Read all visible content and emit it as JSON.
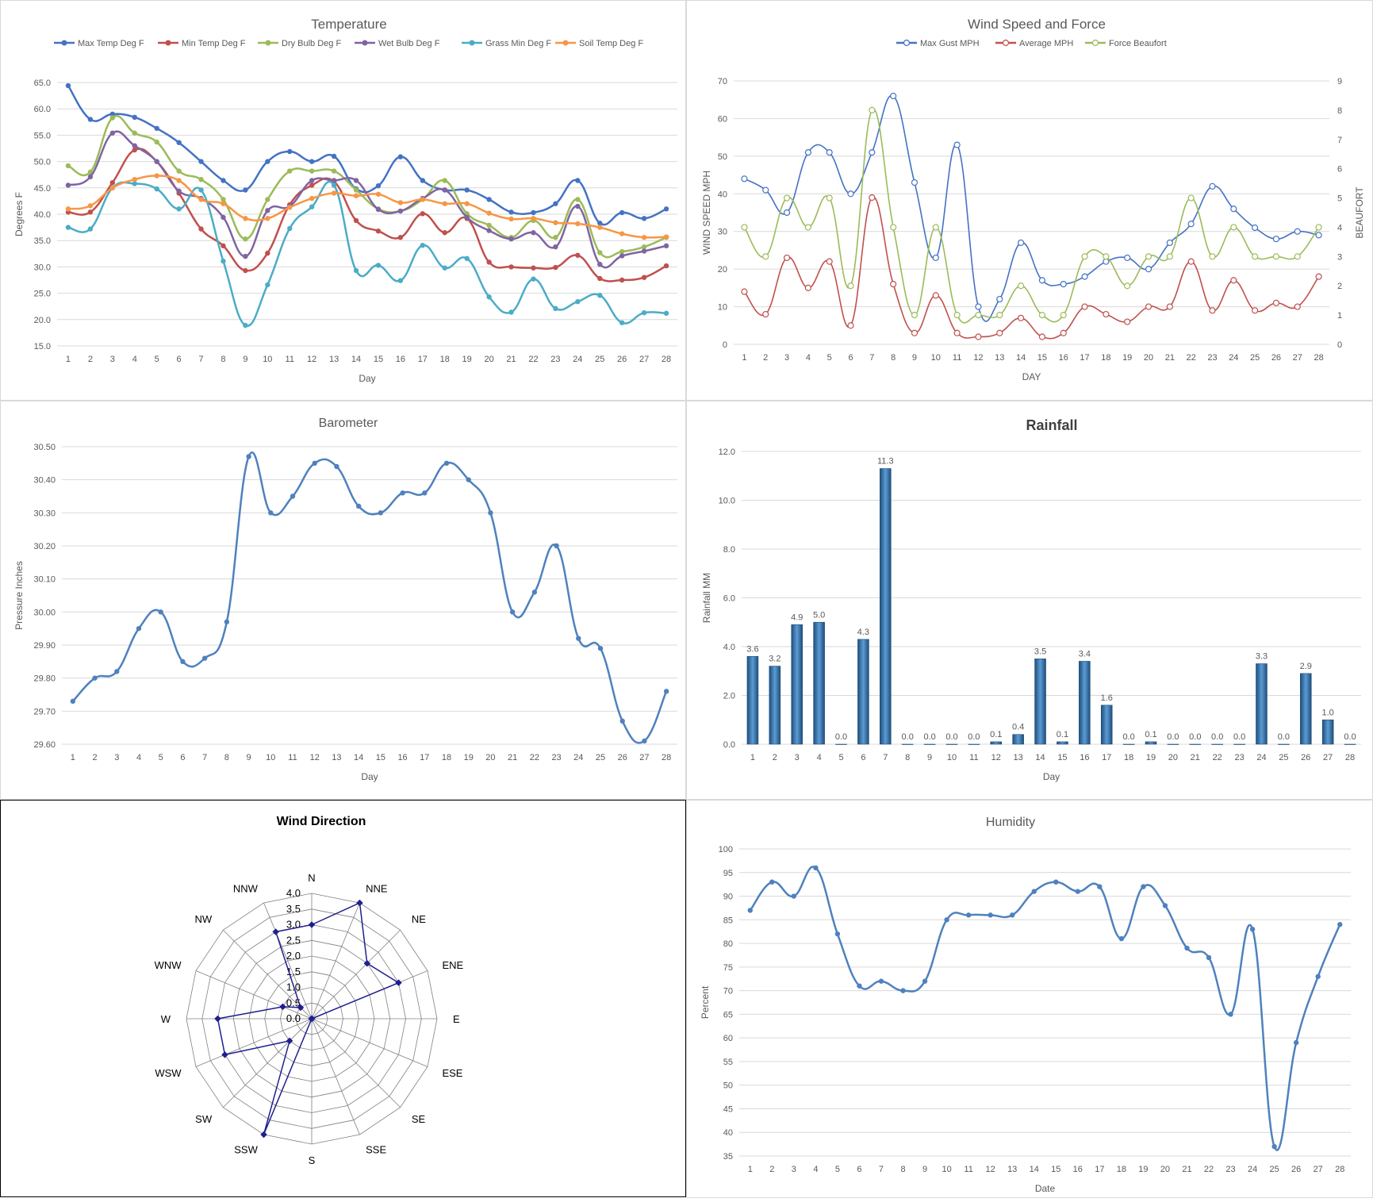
{
  "colors": {
    "max_temp": "#4472C4",
    "min_temp": "#C0504D",
    "dry_bulb": "#9BBB59",
    "wet_bulb": "#8064A2",
    "grass_min": "#4BACC6",
    "soil_temp": "#F79646",
    "barometer": "#4F81BD",
    "rain_bar": "#2E75B6",
    "radar_line": "#1F1F8F",
    "grid": "#D9D9D9",
    "radar_grid": "#808080"
  },
  "chart_data": [
    {
      "id": "temperature",
      "type": "line",
      "title": "Temperature",
      "xlabel": "Day",
      "ylabel": "Degrees F",
      "ylim": [
        15,
        65
      ],
      "ytick_step": 5,
      "ytick_decimals": 1,
      "legend": "top",
      "grid": true,
      "x": [
        1,
        2,
        3,
        4,
        5,
        6,
        7,
        8,
        9,
        10,
        11,
        12,
        13,
        14,
        15,
        16,
        17,
        18,
        19,
        20,
        21,
        22,
        23,
        24,
        25,
        26,
        27,
        28
      ],
      "series": [
        {
          "name": "Max Temp Deg F",
          "color_key": "max_temp",
          "values": [
            64.4,
            58.0,
            59.0,
            58.4,
            56.3,
            53.6,
            50.0,
            46.4,
            44.6,
            50.0,
            51.9,
            50.0,
            51.0,
            44.8,
            45.4,
            50.9,
            46.4,
            44.6,
            44.6,
            42.8,
            40.4,
            40.3,
            42.0,
            46.4,
            38.3,
            40.3,
            39.2,
            41.0
          ]
        },
        {
          "name": "Min Temp Deg F",
          "color_key": "min_temp",
          "values": [
            40.4,
            40.4,
            46.0,
            52.2,
            50.0,
            44.0,
            37.2,
            34.0,
            29.3,
            32.6,
            41.8,
            45.5,
            46.2,
            38.8,
            36.8,
            35.6,
            40.1,
            36.5,
            39.2,
            30.9,
            30.0,
            29.8,
            29.9,
            32.2,
            27.8,
            27.5,
            28.0,
            30.2
          ]
        },
        {
          "name": "Dry Bulb Deg F",
          "color_key": "dry_bulb",
          "values": [
            49.2,
            48.0,
            58.3,
            55.4,
            53.7,
            48.2,
            46.6,
            42.8,
            35.3,
            42.8,
            48.2,
            48.2,
            48.2,
            44.6,
            41.0,
            40.6,
            42.8,
            46.4,
            40.1,
            37.9,
            35.6,
            38.8,
            35.6,
            42.8,
            32.7,
            32.9,
            33.8,
            35.6
          ]
        },
        {
          "name": "Wet Bulb Deg F",
          "color_key": "wet_bulb",
          "values": [
            45.5,
            47.1,
            55.4,
            53.0,
            50.0,
            44.4,
            43.0,
            39.4,
            32.0,
            40.7,
            41.5,
            46.4,
            46.4,
            46.4,
            40.9,
            40.6,
            43.0,
            44.6,
            39.4,
            36.9,
            35.3,
            36.5,
            33.8,
            41.5,
            30.5,
            32.1,
            33.0,
            34.0
          ]
        },
        {
          "name": "Grass Min Deg F",
          "color_key": "grass_min",
          "values": [
            37.5,
            37.2,
            45.0,
            45.8,
            44.8,
            41.0,
            44.6,
            31.1,
            18.9,
            26.6,
            37.3,
            41.4,
            45.5,
            29.3,
            30.3,
            27.4,
            34.1,
            29.8,
            31.6,
            24.3,
            21.4,
            27.7,
            22.1,
            23.4,
            24.6,
            19.4,
            21.3,
            21.2
          ]
        },
        {
          "name": "Soil Temp Deg F",
          "color_key": "soil_temp",
          "values": [
            41.0,
            41.6,
            45.0,
            46.6,
            47.3,
            46.4,
            42.8,
            42.0,
            39.2,
            39.2,
            41.3,
            43.0,
            44.0,
            43.5,
            43.8,
            42.2,
            42.8,
            42.0,
            42.0,
            40.2,
            39.1,
            39.2,
            38.4,
            38.2,
            37.5,
            36.3,
            35.6,
            35.7
          ]
        }
      ]
    },
    {
      "id": "wind",
      "type": "line",
      "title": "Wind Speed and Force",
      "xlabel": "DAY",
      "ylabel": "WIND SPEED MPH",
      "y2label": "BEAUFORT",
      "ylim": [
        0,
        70
      ],
      "ytick_step": 10,
      "y2lim": [
        0,
        9
      ],
      "y2tick_step": 1,
      "legend": "top",
      "grid": true,
      "x": [
        1,
        2,
        3,
        4,
        5,
        6,
        7,
        8,
        9,
        10,
        11,
        12,
        13,
        14,
        15,
        16,
        17,
        18,
        19,
        20,
        21,
        22,
        23,
        24,
        25,
        26,
        27,
        28
      ],
      "series": [
        {
          "name": "Max Gust MPH",
          "color_key": "max_temp",
          "axis": "left",
          "values": [
            44,
            41,
            35,
            51,
            51,
            40,
            51,
            66,
            43,
            23,
            53,
            10,
            12,
            27,
            17,
            16,
            18,
            22,
            23,
            20,
            27,
            32,
            42,
            36,
            31,
            28,
            30,
            29
          ]
        },
        {
          "name": "Average MPH",
          "color_key": "min_temp",
          "axis": "left",
          "values": [
            14,
            8,
            23,
            15,
            22,
            5,
            39,
            16,
            3,
            13,
            3,
            2,
            3,
            7,
            2,
            3,
            10,
            8,
            6,
            10,
            10,
            22,
            9,
            17,
            9,
            11,
            10,
            18
          ]
        },
        {
          "name": "Force Beaufort",
          "color_key": "dry_bulb",
          "axis": "right",
          "values": [
            4,
            3,
            5,
            4,
            5,
            2,
            8,
            4,
            1,
            4,
            1,
            1,
            1,
            2,
            1,
            1,
            3,
            3,
            2,
            3,
            3,
            5,
            3,
            4,
            3,
            3,
            3,
            4
          ]
        }
      ]
    },
    {
      "id": "barometer",
      "type": "line",
      "title": "Barometer",
      "xlabel": "Day",
      "ylabel": "Pressure Inches",
      "ylim": [
        29.6,
        30.5
      ],
      "ytick_step": 0.1,
      "ytick_decimals": 2,
      "grid": true,
      "x": [
        1,
        2,
        3,
        4,
        5,
        6,
        7,
        8,
        9,
        10,
        11,
        12,
        13,
        14,
        15,
        16,
        17,
        18,
        19,
        20,
        21,
        22,
        23,
        24,
        25,
        26,
        27,
        28
      ],
      "series": [
        {
          "name": "",
          "color_key": "barometer",
          "values": [
            29.73,
            29.8,
            29.82,
            29.95,
            30.0,
            29.85,
            29.86,
            29.97,
            30.47,
            30.3,
            30.35,
            30.45,
            30.44,
            30.32,
            30.3,
            30.36,
            30.36,
            30.45,
            30.4,
            30.3,
            30.0,
            30.06,
            30.2,
            29.92,
            29.89,
            29.67,
            29.61,
            29.76
          ]
        }
      ]
    },
    {
      "id": "rainfall",
      "type": "bar",
      "title": "Rainfall",
      "xlabel": "Day",
      "ylabel": "Rainfall MM",
      "ylim": [
        0,
        12
      ],
      "ytick_step": 2,
      "ytick_decimals": 1,
      "grid": true,
      "categories": [
        "1",
        "2",
        "3",
        "4",
        "5",
        "6",
        "7",
        "8",
        "9",
        "10",
        "11",
        "12",
        "13",
        "14",
        "15",
        "16",
        "17",
        "18",
        "19",
        "20",
        "21",
        "22",
        "23",
        "24",
        "25",
        "26",
        "27",
        "28"
      ],
      "values": [
        3.6,
        3.2,
        4.9,
        5.0,
        0.0,
        4.3,
        11.3,
        0.0,
        0.0,
        0.0,
        0.0,
        0.1,
        0.4,
        3.5,
        0.1,
        3.4,
        1.6,
        0.0,
        0.1,
        0.0,
        0.0,
        0.0,
        0.0,
        3.3,
        0.0,
        2.9,
        1.0,
        0.0
      ]
    },
    {
      "id": "wind_direction",
      "type": "radar",
      "title": "Wind Direction",
      "rlim": [
        0,
        4
      ],
      "rtick_step": 0.5,
      "rtick_labels": [
        "0.0",
        "0.5",
        "1.0",
        "1.5",
        "2.0",
        "2.5",
        "3.0",
        "3.5",
        "4.0"
      ],
      "categories": [
        "N",
        "NNE",
        "NE",
        "ENE",
        "E",
        "ESE",
        "SE",
        "SSE",
        "S",
        "SSW",
        "SW",
        "WSW",
        "W",
        "WNW",
        "NW",
        "NNW"
      ],
      "values": [
        3.0,
        4.0,
        2.5,
        3.0,
        0,
        0,
        0,
        0,
        0,
        4.0,
        1.0,
        3.0,
        3.0,
        1.0,
        0.5,
        3.0
      ]
    },
    {
      "id": "humidity",
      "type": "line",
      "title": "Humidity",
      "xlabel": "Date",
      "ylabel": "Percent",
      "ylim": [
        35,
        100
      ],
      "ytick_step": 5,
      "ytick_decimals": 0,
      "grid": true,
      "x": [
        1,
        2,
        3,
        4,
        5,
        6,
        7,
        8,
        9,
        10,
        11,
        12,
        13,
        14,
        15,
        16,
        17,
        18,
        19,
        20,
        21,
        22,
        23,
        24,
        25,
        26,
        27,
        28
      ],
      "series": [
        {
          "name": "",
          "color_key": "barometer",
          "values": [
            87,
            93,
            90,
            96,
            82,
            71,
            72,
            70,
            72,
            85,
            86,
            86,
            86,
            91,
            93,
            91,
            92,
            81,
            92,
            88,
            79,
            77,
            65,
            83,
            37,
            59,
            73,
            84
          ]
        }
      ]
    }
  ]
}
